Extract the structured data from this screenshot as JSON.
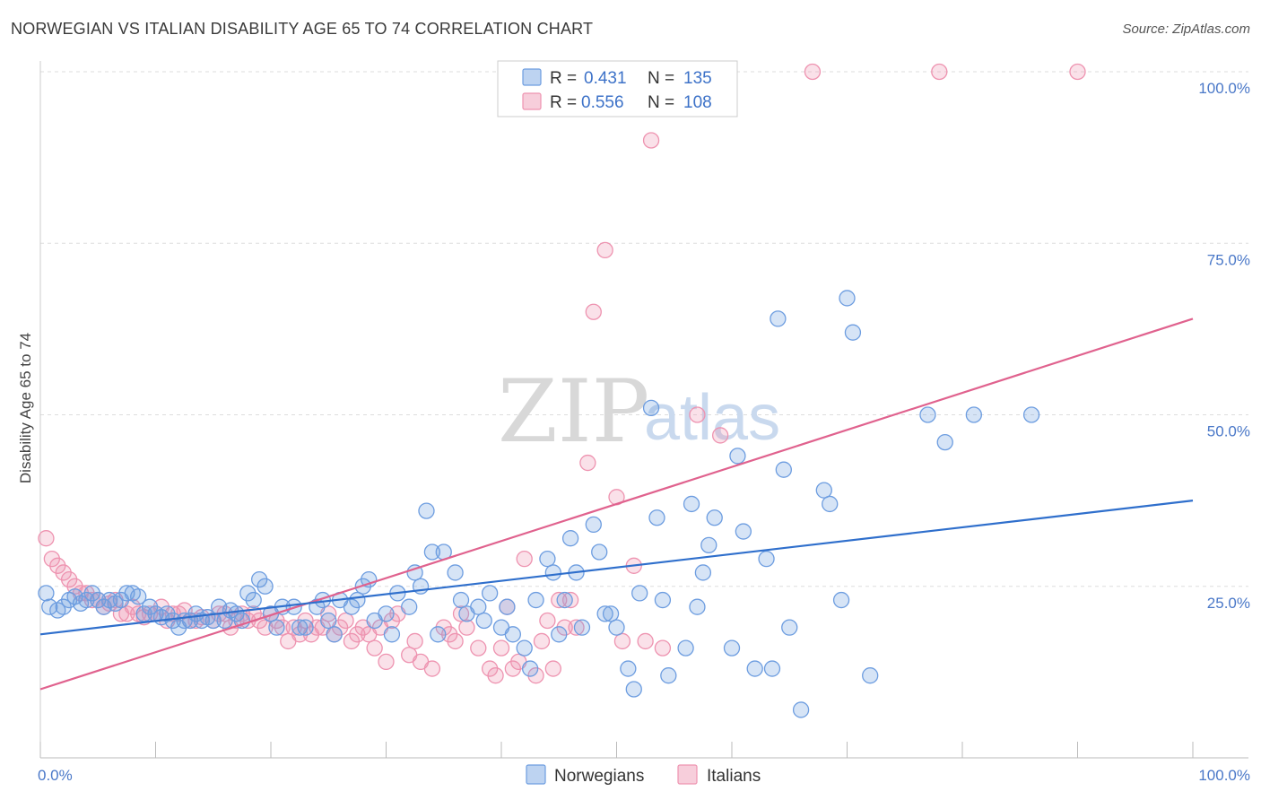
{
  "title": "NORWEGIAN VS ITALIAN DISABILITY AGE 65 TO 74 CORRELATION CHART",
  "source": "Source: ZipAtlas.com",
  "watermark": {
    "zip": "ZIP",
    "atlas": "atlas"
  },
  "colors": {
    "norwegians": "#6d9de0",
    "italians": "#ee93b0",
    "norwegians_line": "#2f6fcc",
    "italians_line": "#e0628e"
  },
  "legend": {
    "r_label": "R =",
    "n_label": "N =",
    "rows": [
      {
        "r": "0.431",
        "n": "135"
      },
      {
        "r": "0.556",
        "n": "108"
      }
    ]
  },
  "bottom_legend": [
    "Norwegians",
    "Italians"
  ],
  "chart_data": {
    "type": "scatter",
    "ylabel": "Disability Age 65 to 74",
    "xlim": [
      0,
      100
    ],
    "ylim": [
      0,
      100
    ],
    "y_ticks": [
      {
        "value": 25,
        "label": "25.0%"
      },
      {
        "value": 50,
        "label": "50.0%"
      },
      {
        "value": 75,
        "label": "75.0%"
      },
      {
        "value": 100,
        "label": "100.0%"
      }
    ],
    "x_tick_labels": [
      {
        "value": 0,
        "label": "0.0%"
      },
      {
        "value": 100,
        "label": "100.0%"
      }
    ],
    "grid": true,
    "legend_position": "top-center",
    "series": [
      {
        "name": "Norwegians",
        "trend": [
          [
            0,
            18.0
          ],
          [
            100,
            37.5
          ]
        ],
        "points": [
          [
            0.5,
            24
          ],
          [
            0.8,
            22
          ],
          [
            1.5,
            21.5
          ],
          [
            2,
            22
          ],
          [
            2.5,
            23
          ],
          [
            3,
            23.5
          ],
          [
            3.5,
            22.5
          ],
          [
            4,
            23
          ],
          [
            4.5,
            24
          ],
          [
            5,
            23
          ],
          [
            5.5,
            22
          ],
          [
            6,
            23
          ],
          [
            6.5,
            22.5
          ],
          [
            7,
            23
          ],
          [
            7.5,
            24
          ],
          [
            8,
            24
          ],
          [
            8.5,
            23.5
          ],
          [
            9,
            21
          ],
          [
            9.5,
            22
          ],
          [
            10,
            21
          ],
          [
            10.5,
            20.5
          ],
          [
            11,
            21
          ],
          [
            11.5,
            20
          ],
          [
            12,
            19
          ],
          [
            12.5,
            20
          ],
          [
            13,
            20
          ],
          [
            13.5,
            21
          ],
          [
            14,
            20
          ],
          [
            14.5,
            20.5
          ],
          [
            15,
            20
          ],
          [
            15.5,
            22
          ],
          [
            16,
            20
          ],
          [
            16.5,
            21.5
          ],
          [
            17,
            21
          ],
          [
            17.5,
            20
          ],
          [
            18,
            24
          ],
          [
            18.5,
            23
          ],
          [
            19,
            26
          ],
          [
            19.5,
            25
          ],
          [
            20,
            21
          ],
          [
            20.5,
            19
          ],
          [
            21,
            22
          ],
          [
            22,
            22
          ],
          [
            22.5,
            19
          ],
          [
            23,
            19
          ],
          [
            24,
            22
          ],
          [
            24.5,
            23
          ],
          [
            25,
            20
          ],
          [
            25.5,
            18
          ],
          [
            26,
            23
          ],
          [
            27,
            22
          ],
          [
            27.5,
            23
          ],
          [
            28,
            25
          ],
          [
            28.5,
            26
          ],
          [
            29,
            20
          ],
          [
            30,
            21
          ],
          [
            30.5,
            18
          ],
          [
            31,
            24
          ],
          [
            32,
            22
          ],
          [
            32.5,
            27
          ],
          [
            33,
            25
          ],
          [
            33.5,
            36
          ],
          [
            34,
            30
          ],
          [
            34.5,
            18
          ],
          [
            35,
            30
          ],
          [
            36,
            27
          ],
          [
            36.5,
            23
          ],
          [
            37,
            21
          ],
          [
            38,
            22
          ],
          [
            38.5,
            20
          ],
          [
            39,
            24
          ],
          [
            40,
            19
          ],
          [
            40.5,
            22
          ],
          [
            41,
            18
          ],
          [
            42,
            16
          ],
          [
            42.5,
            13
          ],
          [
            43,
            23
          ],
          [
            44,
            29
          ],
          [
            44.5,
            27
          ],
          [
            45,
            18
          ],
          [
            45.5,
            23
          ],
          [
            46,
            32
          ],
          [
            46.5,
            27
          ],
          [
            47,
            19
          ],
          [
            48,
            34
          ],
          [
            48.5,
            30
          ],
          [
            49,
            21
          ],
          [
            49.5,
            21
          ],
          [
            50,
            19
          ],
          [
            51,
            13
          ],
          [
            51.5,
            10
          ],
          [
            52,
            24
          ],
          [
            53,
            51
          ],
          [
            53.5,
            35
          ],
          [
            54,
            23
          ],
          [
            54.5,
            12
          ],
          [
            56,
            16
          ],
          [
            56.5,
            37
          ],
          [
            57,
            22
          ],
          [
            57.5,
            27
          ],
          [
            58,
            31
          ],
          [
            58.5,
            35
          ],
          [
            60,
            16
          ],
          [
            60.5,
            44
          ],
          [
            61,
            33
          ],
          [
            62,
            13
          ],
          [
            63,
            29
          ],
          [
            63.5,
            13
          ],
          [
            64,
            64
          ],
          [
            64.5,
            42
          ],
          [
            65,
            19
          ],
          [
            66,
            7
          ],
          [
            68,
            39
          ],
          [
            68.5,
            37
          ],
          [
            69.5,
            23
          ],
          [
            70,
            67
          ],
          [
            70.5,
            62
          ],
          [
            72,
            12
          ],
          [
            77,
            50
          ],
          [
            78.5,
            46
          ],
          [
            81,
            50
          ],
          [
            86,
            50
          ]
        ]
      },
      {
        "name": "Italians",
        "trend": [
          [
            0,
            10.0
          ],
          [
            100,
            64.0
          ]
        ],
        "points": [
          [
            0.5,
            32
          ],
          [
            1,
            29
          ],
          [
            1.5,
            28
          ],
          [
            2,
            27
          ],
          [
            2.5,
            26
          ],
          [
            3,
            25
          ],
          [
            3.5,
            24
          ],
          [
            4,
            24
          ],
          [
            4.5,
            23
          ],
          [
            5,
            23
          ],
          [
            5.5,
            22
          ],
          [
            6,
            22.5
          ],
          [
            6.5,
            23
          ],
          [
            7,
            21
          ],
          [
            7.5,
            21
          ],
          [
            8,
            22
          ],
          [
            8.5,
            21
          ],
          [
            9,
            20.5
          ],
          [
            9.5,
            21
          ],
          [
            10,
            21
          ],
          [
            10.5,
            22
          ],
          [
            11,
            20
          ],
          [
            11.5,
            21
          ],
          [
            12,
            21
          ],
          [
            12.5,
            21.5
          ],
          [
            13,
            20
          ],
          [
            13.5,
            20
          ],
          [
            14,
            20.5
          ],
          [
            15,
            20
          ],
          [
            15.5,
            21
          ],
          [
            16,
            21
          ],
          [
            16.5,
            19
          ],
          [
            17,
            20
          ],
          [
            17.5,
            21
          ],
          [
            18,
            20
          ],
          [
            18.5,
            21
          ],
          [
            19,
            20
          ],
          [
            19.5,
            19
          ],
          [
            20,
            21
          ],
          [
            20.5,
            20
          ],
          [
            21,
            19
          ],
          [
            21.5,
            17
          ],
          [
            22,
            19
          ],
          [
            22.5,
            18
          ],
          [
            23,
            20
          ],
          [
            23.5,
            18
          ],
          [
            24,
            19
          ],
          [
            24.5,
            19
          ],
          [
            25,
            21
          ],
          [
            25.5,
            18
          ],
          [
            26,
            19
          ],
          [
            26.5,
            20
          ],
          [
            27,
            17
          ],
          [
            27.5,
            18
          ],
          [
            28,
            19
          ],
          [
            28.5,
            18
          ],
          [
            29,
            16
          ],
          [
            29.5,
            19
          ],
          [
            30,
            14
          ],
          [
            30.5,
            20
          ],
          [
            31,
            21
          ],
          [
            32,
            15
          ],
          [
            32.5,
            17
          ],
          [
            33,
            14
          ],
          [
            34,
            13
          ],
          [
            35,
            19
          ],
          [
            35.5,
            18
          ],
          [
            36,
            17
          ],
          [
            36.5,
            21
          ],
          [
            37,
            19
          ],
          [
            38,
            16
          ],
          [
            39,
            13
          ],
          [
            39.5,
            12
          ],
          [
            40,
            16
          ],
          [
            40.5,
            22
          ],
          [
            41,
            13
          ],
          [
            41.5,
            14
          ],
          [
            42,
            29
          ],
          [
            43,
            12
          ],
          [
            43.5,
            17
          ],
          [
            44,
            20
          ],
          [
            44.5,
            13
          ],
          [
            45,
            23
          ],
          [
            45.5,
            19
          ],
          [
            46,
            23
          ],
          [
            46.5,
            19
          ],
          [
            47.5,
            43
          ],
          [
            48,
            65
          ],
          [
            49,
            74
          ],
          [
            50,
            38
          ],
          [
            50.5,
            17
          ],
          [
            51.5,
            28
          ],
          [
            52.5,
            17
          ],
          [
            53,
            90
          ],
          [
            54,
            16
          ],
          [
            56,
            100
          ],
          [
            57,
            50
          ],
          [
            59,
            47
          ],
          [
            67,
            100
          ],
          [
            78,
            100
          ],
          [
            90,
            100
          ]
        ]
      }
    ]
  }
}
